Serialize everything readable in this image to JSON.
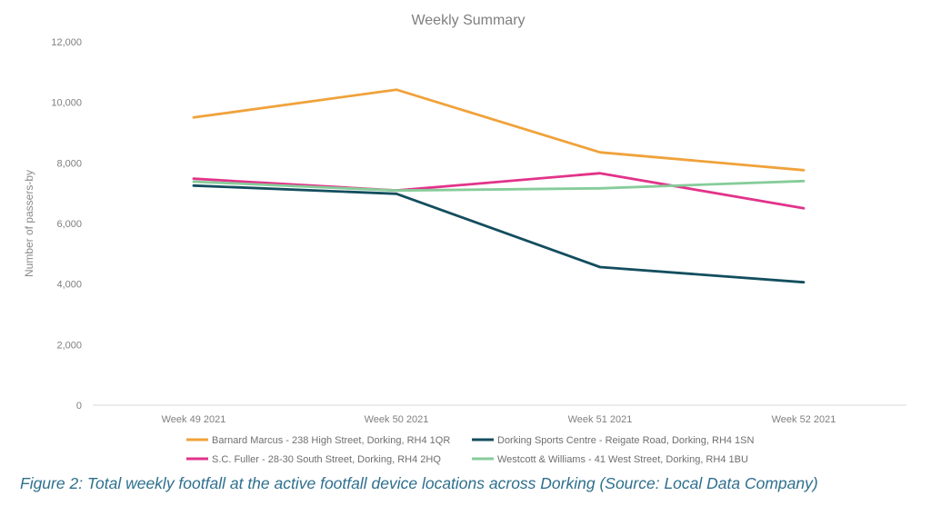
{
  "chart_data": {
    "type": "line",
    "title": "Weekly Summary",
    "xlabel": "",
    "ylabel": "Number of passers-by",
    "categories": [
      "Week 49 2021",
      "Week 50 2021",
      "Week 51 2021",
      "Week 52 2021"
    ],
    "ylim": [
      0,
      12000
    ],
    "yticks": [
      0,
      2000,
      4000,
      6000,
      8000,
      10000,
      12000
    ],
    "ytick_labels": [
      "0",
      "2,000",
      "4,000",
      "6,000",
      "8,000",
      "10,000",
      "12,000"
    ],
    "grid": false,
    "legend_position": "bottom",
    "series": [
      {
        "name": "Barnard Marcus - 238 High Street, Dorking, RH4 1QR",
        "color": "#f0a23b",
        "values": [
          9500,
          10420,
          8350,
          7760
        ]
      },
      {
        "name": "Dorking Sports Centre - Reigate Road, Dorking, RH4 1SN",
        "color": "#134e5e",
        "values": [
          7250,
          6980,
          4560,
          4060
        ]
      },
      {
        "name": "S.C. Fuller - 28-30 South Street, Dorking, RH4 2HQ",
        "color": "#e2338a",
        "values": [
          7480,
          7090,
          7660,
          6500
        ]
      },
      {
        "name": "Westcott & Williams - 41 West Street, Dorking, RH4 1BU",
        "color": "#86cc9a",
        "values": [
          7380,
          7090,
          7160,
          7400
        ]
      }
    ]
  },
  "caption": "Figure 2: Total weekly footfall at the active footfall device locations across Dorking (Source: Local Data Company)"
}
